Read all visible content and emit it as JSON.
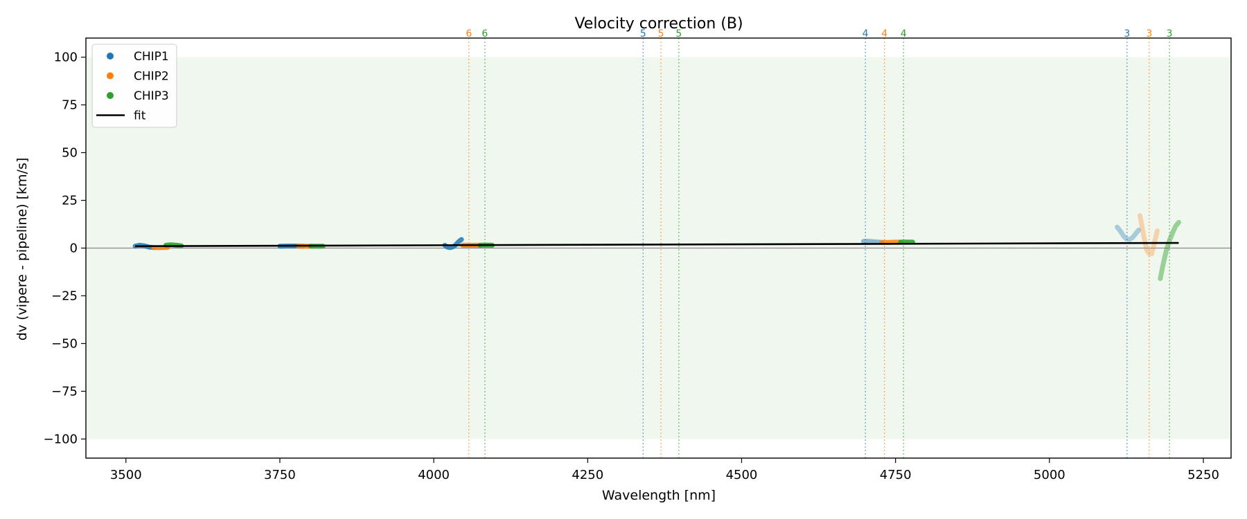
{
  "chart_data": {
    "type": "scatter",
    "title": "Velocity correction (B)",
    "xlabel": "Wavelength [nm]",
    "ylabel": "dv (vipere - pipeline) [km/s]",
    "xlim": [
      3435,
      5295
    ],
    "ylim": [
      -110,
      110
    ],
    "xticks": [
      3500,
      3750,
      4000,
      4250,
      4500,
      4750,
      5000,
      5250
    ],
    "yticks": [
      100,
      75,
      50,
      25,
      0,
      -25,
      -50,
      -75,
      -100
    ],
    "shaded_band": {
      "y0": -100,
      "y1": 100,
      "color": "#f0f7ef"
    },
    "zero_line": {
      "y": 0,
      "color": "#888888"
    },
    "grid": false,
    "legend_position": "top-left",
    "legend": [
      {
        "label": "CHIP1",
        "color": "#1f77b4",
        "kind": "marker"
      },
      {
        "label": "CHIP2",
        "color": "#ff7f0e",
        "kind": "marker"
      },
      {
        "label": "CHIP3",
        "color": "#2ca02c",
        "kind": "marker"
      },
      {
        "label": "fit",
        "color": "#000000",
        "kind": "line"
      }
    ],
    "order_markers": [
      {
        "label": "6",
        "x": 4057,
        "color": "#ff7f0e"
      },
      {
        "label": "6",
        "x": 4083,
        "color": "#2ca02c"
      },
      {
        "label": "5",
        "x": 4340,
        "color": "#1f77b4"
      },
      {
        "label": "5",
        "x": 4369,
        "color": "#ff7f0e"
      },
      {
        "label": "5",
        "x": 4398,
        "color": "#2ca02c"
      },
      {
        "label": "4",
        "x": 4701,
        "color": "#1f77b4"
      },
      {
        "label": "4",
        "x": 4732,
        "color": "#ff7f0e"
      },
      {
        "label": "4",
        "x": 4763,
        "color": "#2ca02c"
      },
      {
        "label": "3",
        "x": 5126,
        "color": "#1f77b4"
      },
      {
        "label": "3",
        "x": 5162,
        "color": "#ff7f0e"
      },
      {
        "label": "3",
        "x": 5195,
        "color": "#2ca02c"
      }
    ],
    "fit": {
      "x": [
        3515,
        5210
      ],
      "y": [
        1.0,
        2.7
      ]
    },
    "series": [
      {
        "name": "CHIP1",
        "color": "#1f77b4",
        "segments": [
          {
            "x": [
              3515,
              3522,
              3530,
              3538,
              3545
            ],
            "y": [
              1.0,
              1.5,
              1.2,
              0.5,
              0.3
            ],
            "alpha": 0.85
          },
          {
            "x": [
              3750,
              3762,
              3775,
              3788
            ],
            "y": [
              1.0,
              1.1,
              1.1,
              1.0
            ],
            "alpha": 0.85
          },
          {
            "x": [
              4018,
              4022,
              4026,
              4030,
              4034,
              4038,
              4042,
              4045
            ],
            "y": [
              1.5,
              0.5,
              0.2,
              0.5,
              1.2,
              2.5,
              3.8,
              4.5
            ],
            "alpha": 0.85
          },
          {
            "x": [
              4698,
              4705,
              4712,
              4720,
              4728
            ],
            "y": [
              3.5,
              3.6,
              3.4,
              3.2,
              3.0
            ],
            "alpha": 0.5
          },
          {
            "x": [
              5110,
              5115,
              5120,
              5125,
              5130,
              5135,
              5140,
              5145
            ],
            "y": [
              11.0,
              9.0,
              6.5,
              4.8,
              4.5,
              5.5,
              7.5,
              9.5
            ],
            "alpha": 0.35
          }
        ]
      },
      {
        "name": "CHIP2",
        "color": "#ff7f0e",
        "segments": [
          {
            "x": [
              3545,
              3552,
              3560,
              3568
            ],
            "y": [
              0.3,
              0.2,
              0.3,
              0.4
            ],
            "alpha": 0.9
          },
          {
            "x": [
              3780,
              3790,
              3800
            ],
            "y": [
              1.0,
              1.0,
              1.0
            ],
            "alpha": 0.9
          },
          {
            "x": [
              4047,
              4057,
              4067,
              4075
            ],
            "y": [
              1.5,
              1.5,
              1.5,
              1.5
            ],
            "alpha": 0.9
          },
          {
            "x": [
              4728,
              4738,
              4748,
              4758
            ],
            "y": [
              3.0,
              3.0,
              3.1,
              3.1
            ],
            "alpha": 0.85
          },
          {
            "x": [
              5147,
              5150,
              5154,
              5158,
              5162,
              5166,
              5170,
              5175
            ],
            "y": [
              17.0,
              12.0,
              5.0,
              -1.0,
              -3.0,
              -3.0,
              2.0,
              9.0
            ],
            "alpha": 0.3
          }
        ]
      },
      {
        "name": "CHIP3",
        "color": "#2ca02c",
        "segments": [
          {
            "x": [
              3565,
              3573,
              3582,
              3590
            ],
            "y": [
              1.5,
              1.7,
              1.5,
              1.2
            ],
            "alpha": 0.9
          },
          {
            "x": [
              3800,
              3810,
              3820
            ],
            "y": [
              1.0,
              1.0,
              1.0
            ],
            "alpha": 0.9
          },
          {
            "x": [
              4075,
              4085,
              4095
            ],
            "y": [
              1.5,
              1.6,
              1.5
            ],
            "alpha": 0.9
          },
          {
            "x": [
              4758,
              4768,
              4778
            ],
            "y": [
              3.1,
              3.2,
              3.1
            ],
            "alpha": 0.9
          },
          {
            "x": [
              5180,
              5185,
              5190,
              5195,
              5200,
              5205,
              5210
            ],
            "y": [
              -16.0,
              -8.0,
              -1.0,
              4.0,
              8.0,
              11.5,
              13.5
            ],
            "alpha": 0.45
          }
        ]
      }
    ]
  }
}
